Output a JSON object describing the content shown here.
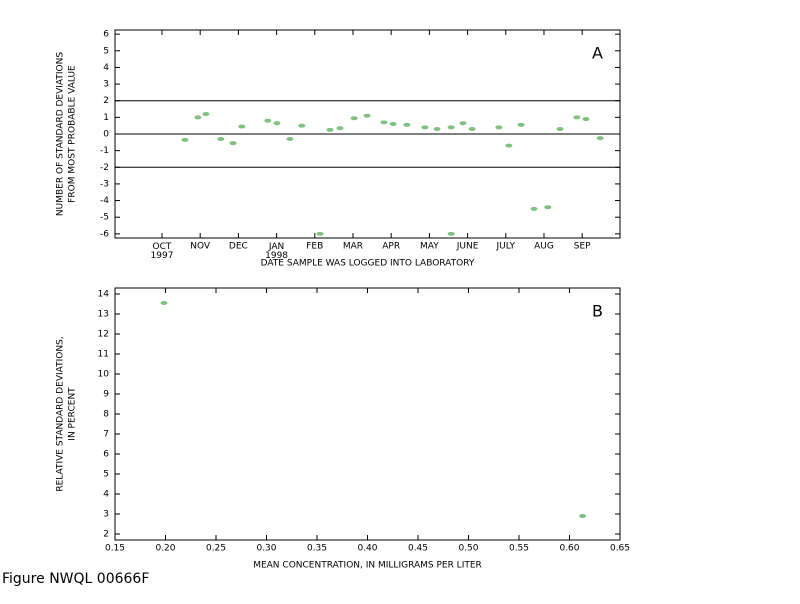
{
  "chart_data": [
    {
      "type": "scatter",
      "annotation": "A",
      "ylabel": [
        "NUMBER OF STANDARD DEVIATIONS",
        "FROM MOST PROBABLE VALUE"
      ],
      "xlabel": "DATE SAMPLE WAS LOGGED INTO LABORATORY",
      "xlim": [
        -1.23,
        11.99
      ],
      "ylim": [
        -6.25,
        6.25
      ],
      "xticks": [
        {
          "value": 0,
          "label": "OCT\n1997"
        },
        {
          "value": 1,
          "label": "NOV"
        },
        {
          "value": 2,
          "label": "DEC"
        },
        {
          "value": 3,
          "label": "JAN\n1998"
        },
        {
          "value": 4,
          "label": "FEB"
        },
        {
          "value": 5,
          "label": "MAR"
        },
        {
          "value": 6,
          "label": "APR"
        },
        {
          "value": 7,
          "label": "MAY"
        },
        {
          "value": 8,
          "label": "JUNE"
        },
        {
          "value": 9,
          "label": "JULY"
        },
        {
          "value": 10,
          "label": "AUG"
        },
        {
          "value": 11,
          "label": "SEP"
        }
      ],
      "yticks": [
        -6,
        -5,
        -4,
        -3,
        -2,
        -1,
        0,
        1,
        2,
        3,
        4,
        5,
        6
      ],
      "hlines": [
        2,
        0,
        -2
      ],
      "color": "#80c080",
      "x": [
        0.6,
        0.94,
        1.15,
        1.54,
        1.86,
        2.09,
        2.77,
        3.01,
        3.35,
        3.66,
        4.14,
        4.4,
        4.66,
        5.03,
        5.37,
        5.81,
        6.05,
        6.41,
        6.88,
        7.2,
        7.57,
        7.57,
        7.88,
        8.12,
        8.82,
        9.08,
        9.4,
        9.74,
        10.1,
        10.42,
        10.86,
        11.1,
        11.47
      ],
      "values": [
        -0.35,
        1.0,
        1.2,
        -0.3,
        -0.55,
        0.45,
        0.8,
        0.65,
        -0.3,
        0.5,
        -6.0,
        0.25,
        0.35,
        0.95,
        1.1,
        0.7,
        0.6,
        0.55,
        0.4,
        0.3,
        0.4,
        -6.0,
        0.65,
        0.3,
        0.4,
        -0.7,
        0.55,
        -4.5,
        -4.4,
        0.3,
        1.0,
        0.9,
        -0.25
      ]
    },
    {
      "type": "scatter",
      "annotation": "B",
      "ylabel": [
        "RELATIVE STANDARD DEVIATIONS,",
        "IN PERCENT"
      ],
      "xlabel": "MEAN CONCENTRATION, IN MILLIGRAMS PER LITER",
      "xlim": [
        0.15,
        0.65
      ],
      "ylim": [
        1.7,
        14.3
      ],
      "xticks": [
        0.15,
        {
          "value": 0.2,
          "label": "0.20"
        },
        0.25,
        {
          "value": 0.3,
          "label": "0.30"
        },
        0.35,
        {
          "value": 0.4,
          "label": "0.40"
        },
        0.45,
        {
          "value": 0.5,
          "label": "0.50"
        },
        0.55,
        {
          "value": 0.6,
          "label": "0.60"
        },
        0.65
      ],
      "yticks": [
        2,
        3,
        4,
        5,
        6,
        7,
        8,
        9,
        10,
        11,
        12,
        13,
        14
      ],
      "color": "#80c080",
      "x": [
        0.1985,
        0.613
      ],
      "values": [
        13.55,
        2.9
      ]
    }
  ],
  "footer": "Figure NWQL 00666F"
}
